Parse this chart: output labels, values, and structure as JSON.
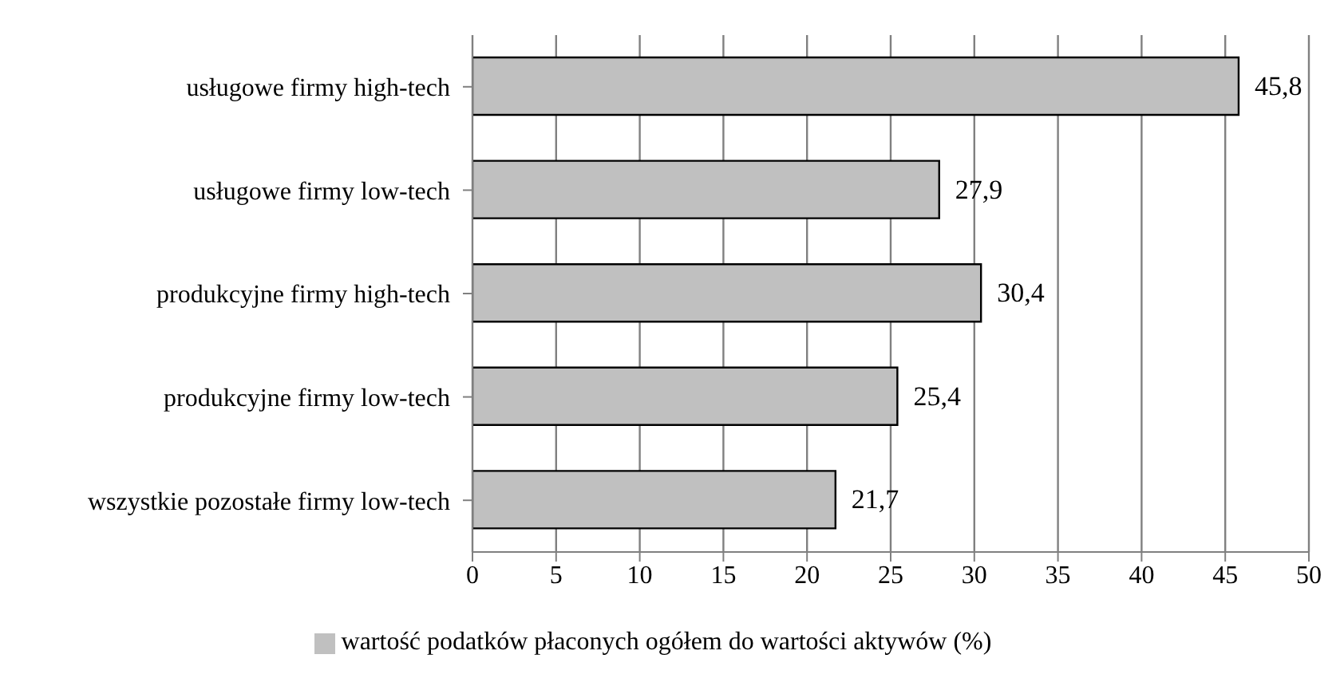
{
  "chart_data": {
    "type": "bar",
    "orientation": "horizontal",
    "categories": [
      "usługowe firmy high-tech",
      "usługowe firmy low-tech",
      "produkcyjne firmy high-tech",
      "produkcyjne firmy low-tech",
      "wszystkie pozostałe firmy low-tech"
    ],
    "series": [
      {
        "name": "wartość podatków płaconych ogółem do wartości aktywów (%)",
        "color": "#c0c0c0",
        "values": [
          45.8,
          27.9,
          30.4,
          25.4,
          21.7
        ],
        "value_labels": [
          "45,8",
          "27,9",
          "30,4",
          "25,4",
          "21,7"
        ]
      }
    ],
    "xlim": [
      0,
      50
    ],
    "xticks": [
      0,
      5,
      10,
      15,
      20,
      25,
      30,
      35,
      40,
      45,
      50
    ],
    "grid": "x",
    "legend": "bottom"
  }
}
